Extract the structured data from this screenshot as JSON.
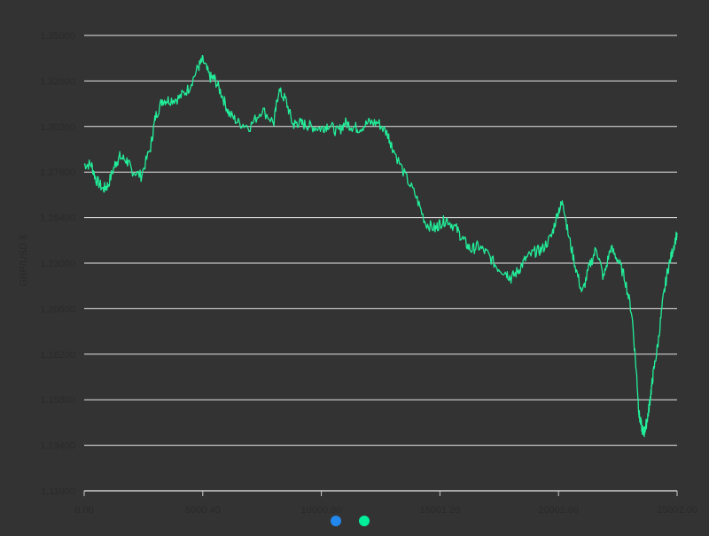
{
  "chart_data": {
    "type": "line",
    "title": "",
    "xlabel": "",
    "ylabel": "GBP/USD $",
    "grid": true,
    "legend_placement": "bottom-center",
    "xlim": [
      0,
      25002
    ],
    "ylim": [
      1.11,
      1.35
    ],
    "x_ticks": [
      0,
      5000.4,
      10000.8,
      15001.2,
      20001.6,
      25002
    ],
    "x_tick_labels": [
      "0.00",
      "5000.40",
      "10000.80",
      "15001.20",
      "20001.60",
      "25002.00"
    ],
    "y_ticks": [
      1.11,
      1.134,
      1.158,
      1.182,
      1.206,
      1.23,
      1.254,
      1.278,
      1.302,
      1.326,
      1.35
    ],
    "y_tick_labels": [
      "1.11000",
      "1.13400",
      "1.15800",
      "1.18200",
      "1.20600",
      "1.23000",
      "1.25400",
      "1.27800",
      "1.30200",
      "1.32600",
      "1.35000"
    ],
    "colors": {
      "background": "#333333",
      "grid": "#e8e8e8",
      "axis": "#cccccc",
      "tick_label": "#2a2a2a",
      "legend_series_1": "#2288ee",
      "legend_series_2": "#00ee99",
      "line": "#22ee99"
    },
    "series": [
      {
        "color": "#22ee99",
        "x": [
          0,
          300,
          500,
          800,
          1000,
          1300,
          1500,
          1800,
          2000,
          2400,
          2800,
          3000,
          3300,
          3600,
          4000,
          4400,
          4800,
          5000,
          5300,
          5500,
          5800,
          6100,
          6500,
          7000,
          7500,
          8000,
          8200,
          8500,
          8800,
          9000,
          9300,
          9600,
          10000,
          10300,
          10700,
          11000,
          11300,
          11600,
          12000,
          12400,
          12800,
          13000,
          13500,
          14000,
          14400,
          14800,
          15000,
          15300,
          15700,
          16000,
          16300,
          16600,
          17000,
          17400,
          17800,
          18000,
          18300,
          18600,
          19000,
          19300,
          19700,
          20000,
          20200,
          20400,
          20700,
          21000,
          21300,
          21600,
          21900,
          22200,
          22500,
          22800,
          23100,
          23300,
          23400,
          23500,
          23600,
          23700,
          23800,
          23900,
          24000,
          24200,
          24400,
          24600,
          24800,
          25000
        ],
        "y": [
          1.282,
          1.282,
          1.274,
          1.269,
          1.271,
          1.282,
          1.286,
          1.284,
          1.279,
          1.276,
          1.291,
          1.307,
          1.316,
          1.316,
          1.317,
          1.322,
          1.333,
          1.337,
          1.328,
          1.327,
          1.319,
          1.309,
          1.304,
          1.302,
          1.311,
          1.304,
          1.321,
          1.316,
          1.303,
          1.304,
          1.303,
          1.302,
          1.301,
          1.303,
          1.299,
          1.304,
          1.302,
          1.301,
          1.304,
          1.304,
          1.298,
          1.291,
          1.277,
          1.265,
          1.251,
          1.248,
          1.251,
          1.253,
          1.248,
          1.242,
          1.237,
          1.239,
          1.235,
          1.228,
          1.225,
          1.222,
          1.226,
          1.232,
          1.236,
          1.237,
          1.244,
          1.258,
          1.262,
          1.246,
          1.229,
          1.214,
          1.228,
          1.238,
          1.222,
          1.238,
          1.232,
          1.222,
          1.203,
          1.17,
          1.15,
          1.144,
          1.14,
          1.145,
          1.152,
          1.162,
          1.172,
          1.188,
          1.21,
          1.226,
          1.236,
          1.246
        ]
      }
    ]
  }
}
